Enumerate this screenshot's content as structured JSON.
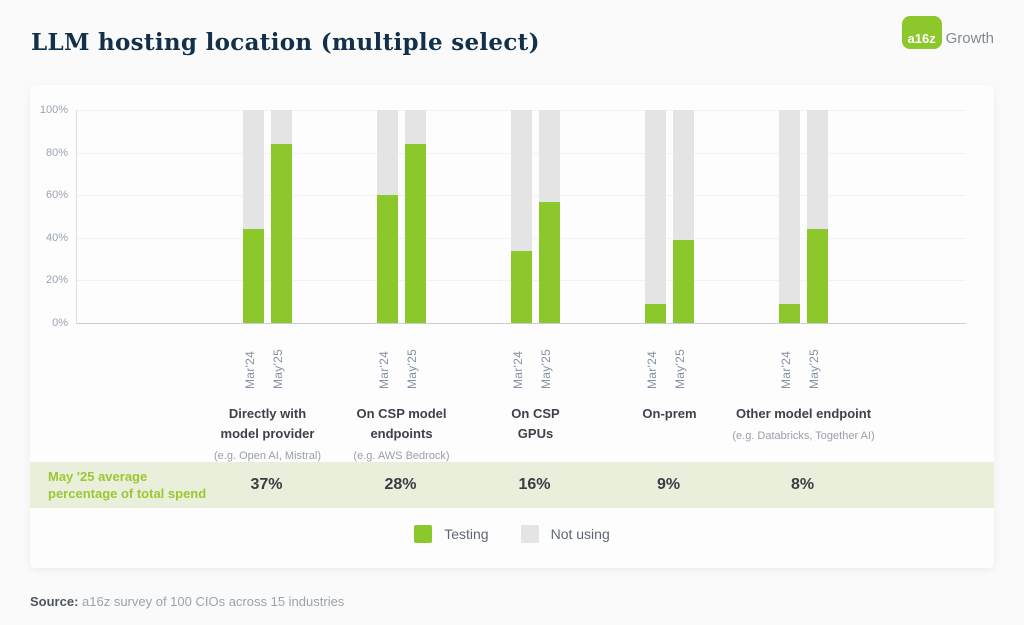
{
  "page": {
    "title": "LLM hosting location (multiple select)",
    "logo": {
      "badge": "a16z",
      "wordmark": "Growth"
    },
    "source_label": "Source:",
    "source_text": " a16z survey of 100 CIOs across 15 industries"
  },
  "colors": {
    "testing_green": "#8CC72C",
    "not_using_gray": "#E4E4E5",
    "band_bg": "#E9EFDA",
    "band_label_green": "#9CC832",
    "title_navy": "#13304A"
  },
  "band": {
    "label_lines": [
      "May '25 average",
      "percentage of total spend"
    ]
  },
  "legend": [
    {
      "name": "testing",
      "label": "Testing",
      "color": "#8CC72C"
    },
    {
      "name": "not-using",
      "label": "Not using",
      "color": "#E4E4E5"
    }
  ],
  "chart_data": {
    "type": "bar",
    "stacked": true,
    "title": "LLM hosting location (multiple select)",
    "ylabel": "",
    "ylim": [
      0,
      100
    ],
    "grid": true,
    "y_ticks": [
      "100%",
      "80%",
      "60%",
      "40%",
      "20%",
      "0%"
    ],
    "x_tick_labels": [
      "Mar'24",
      "May'25"
    ],
    "series_names": [
      "Testing",
      "Not using"
    ],
    "groups": [
      {
        "label_lines": [
          "Directly with",
          "model provider"
        ],
        "sublabel": "(e.g. Open AI, Mistral)",
        "testing": {
          "mar24": 44,
          "may25": 84
        },
        "not_using": {
          "mar24": 56,
          "may25": 16
        },
        "avg_of_total_spend": "37%"
      },
      {
        "label_lines": [
          "On CSP model",
          "endpoints"
        ],
        "sublabel": "(e.g. AWS Bedrock)",
        "testing": {
          "mar24": 60,
          "may25": 84
        },
        "not_using": {
          "mar24": 40,
          "may25": 16
        },
        "avg_of_total_spend": "28%"
      },
      {
        "label_lines": [
          "On CSP",
          "GPUs"
        ],
        "sublabel": "",
        "testing": {
          "mar24": 34,
          "may25": 57
        },
        "not_using": {
          "mar24": 66,
          "may25": 43
        },
        "avg_of_total_spend": "16%"
      },
      {
        "label_lines": [
          "On-prem"
        ],
        "sublabel": "",
        "testing": {
          "mar24": 9,
          "may25": 39
        },
        "not_using": {
          "mar24": 91,
          "may25": 61
        },
        "avg_of_total_spend": "9%"
      },
      {
        "label_lines": [
          "Other model endpoint"
        ],
        "sublabel": "(e.g. Databricks, Together AI)",
        "testing": {
          "mar24": 9,
          "may25": 44
        },
        "not_using": {
          "mar24": 91,
          "may25": 56
        },
        "avg_of_total_spend": "8%"
      }
    ]
  }
}
